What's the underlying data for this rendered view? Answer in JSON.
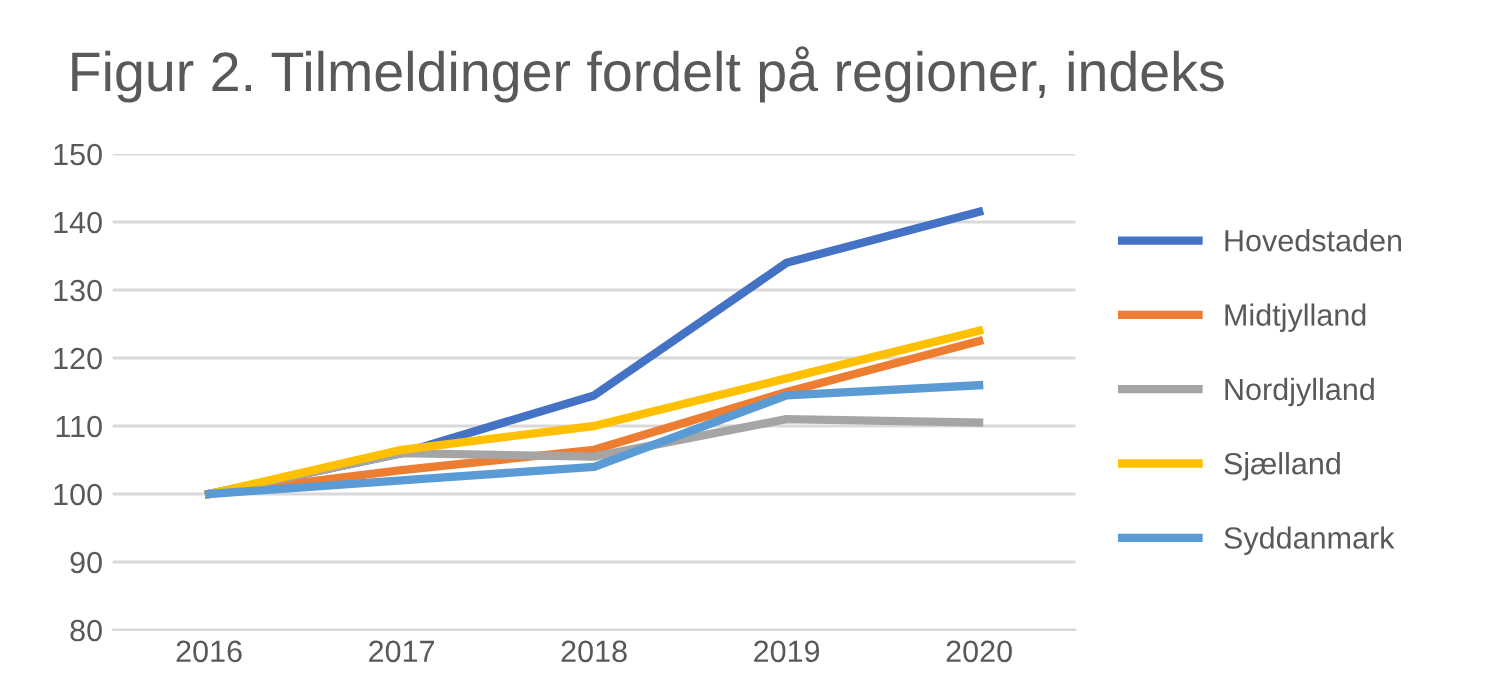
{
  "chart_data": {
    "type": "line",
    "title": "Figur 2. Tilmeldinger fordelt på regioner, indeks",
    "categories": [
      "2016",
      "2017",
      "2018",
      "2019",
      "2020"
    ],
    "series": [
      {
        "name": "Hovedstaden",
        "color": "#4472c4",
        "values": [
          100,
          106,
          114.5,
          134,
          141.5
        ]
      },
      {
        "name": "Midtjylland",
        "color": "#ed7d31",
        "values": [
          100,
          103.5,
          106.5,
          115,
          122.5
        ]
      },
      {
        "name": "Nordjylland",
        "color": "#a5a5a5",
        "values": [
          100,
          106,
          105.5,
          111,
          110.5
        ]
      },
      {
        "name": "Sjælland",
        "color": "#ffc000",
        "values": [
          100,
          106.5,
          110,
          117,
          124
        ]
      },
      {
        "name": "Syddanmark",
        "color": "#5b9bd5",
        "values": [
          100,
          102,
          104,
          114.5,
          116
        ]
      }
    ],
    "ylim": [
      80,
      150
    ],
    "yticks": [
      80,
      90,
      100,
      110,
      120,
      130,
      140,
      150
    ],
    "grid": "y",
    "legend": "right",
    "marker": "none",
    "line_style": "solid"
  }
}
